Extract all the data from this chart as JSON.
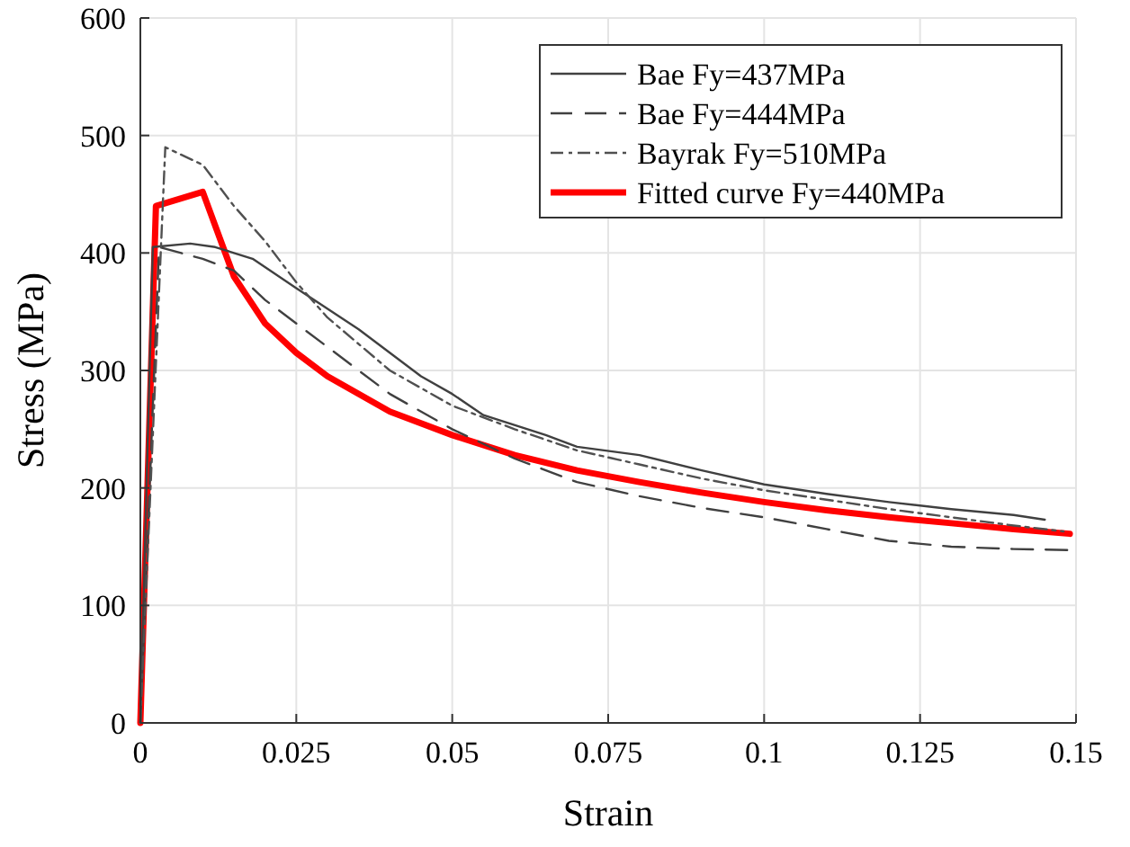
{
  "chart_data": {
    "type": "line",
    "xlabel": "Strain",
    "ylabel": "Stress (MPa)",
    "xlim": [
      0,
      0.15
    ],
    "xticks": [
      0,
      0.025,
      0.05,
      0.075,
      0.1,
      0.125,
      0.15
    ],
    "ylim": [
      0,
      600
    ],
    "yticks": [
      0,
      100,
      200,
      300,
      400,
      500,
      600
    ],
    "grid": true,
    "legend": "top right",
    "series": [
      {
        "name": "Bae Fy=437MPa",
        "color": "#404040",
        "line_style": "solid",
        "x": [
          0,
          0.002,
          0.008,
          0.012,
          0.018,
          0.025,
          0.035,
          0.045,
          0.05,
          0.055,
          0.065,
          0.07,
          0.08,
          0.09,
          0.1,
          0.11,
          0.12,
          0.13,
          0.14,
          0.145
        ],
        "values": [
          0,
          405,
          408,
          405,
          395,
          370,
          335,
          295,
          280,
          262,
          245,
          235,
          228,
          215,
          203,
          195,
          188,
          182,
          177,
          173
        ]
      },
      {
        "name": "Bae Fy=444MPa",
        "color": "#404040",
        "line_style": "dashed",
        "x": [
          0,
          0.003,
          0.01,
          0.015,
          0.02,
          0.03,
          0.04,
          0.05,
          0.06,
          0.07,
          0.08,
          0.09,
          0.1,
          0.11,
          0.12,
          0.13,
          0.14,
          0.15
        ],
        "values": [
          0,
          405,
          395,
          385,
          360,
          320,
          280,
          250,
          225,
          205,
          193,
          183,
          175,
          165,
          155,
          150,
          148,
          147
        ]
      },
      {
        "name": "Bayrak Fy=510MPa",
        "color": "#505050",
        "line_style": "dashdot",
        "x": [
          0,
          0.004,
          0.01,
          0.015,
          0.02,
          0.025,
          0.03,
          0.04,
          0.05,
          0.06,
          0.07,
          0.08,
          0.09,
          0.1,
          0.11,
          0.12,
          0.13,
          0.14,
          0.148
        ],
        "values": [
          0,
          490,
          475,
          440,
          410,
          375,
          345,
          300,
          270,
          250,
          232,
          220,
          208,
          198,
          190,
          182,
          175,
          168,
          163
        ]
      },
      {
        "name": "Fitted curve Fy=440MPa",
        "color": "#ff0000",
        "line_style": "solid",
        "x": [
          0,
          0.0025,
          0.01,
          0.015,
          0.02,
          0.025,
          0.03,
          0.04,
          0.05,
          0.06,
          0.07,
          0.08,
          0.09,
          0.1,
          0.11,
          0.12,
          0.13,
          0.14,
          0.149
        ],
        "values": [
          0,
          440,
          452,
          380,
          340,
          315,
          295,
          265,
          245,
          228,
          215,
          205,
          196,
          188,
          181,
          175,
          170,
          165,
          161
        ]
      }
    ]
  }
}
